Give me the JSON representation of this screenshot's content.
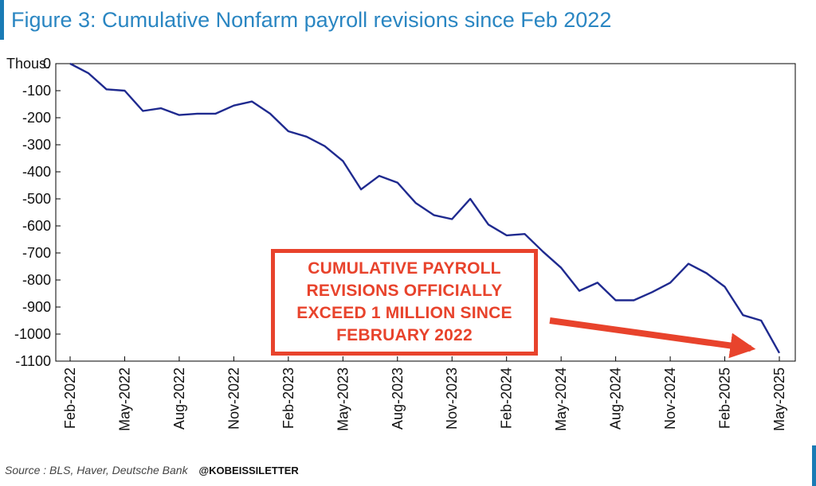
{
  "title": "Figure 3: Cumulative Nonfarm payroll revisions since Feb 2022",
  "footer": {
    "source": "Source : BLS, Haver, Deutsche Bank",
    "handle": "@KOBEISSILETTER"
  },
  "callout": {
    "text": "CUMULATIVE PAYROLL REVISIONS OFFICIALLY EXCEED 1 MILLION SINCE FEBRUARY 2022"
  },
  "colors": {
    "title": "#2a86c2",
    "line": "#1f2a8f",
    "callout": "#e8432c",
    "accent_rule": "#1a7bb5"
  },
  "chart_data": {
    "type": "line",
    "title": "Figure 3: Cumulative Nonfarm payroll revisions since Feb 2022",
    "ylabel": "Thous.",
    "ylim": [
      -1100,
      0
    ],
    "yticks": [
      0,
      -100,
      -200,
      -300,
      -400,
      -500,
      -600,
      -700,
      -800,
      -900,
      -1000,
      -1100
    ],
    "ytick_labels": [
      "0",
      "-100",
      "-200",
      "-300",
      "-400",
      "-500",
      "-600",
      "-700",
      "-800",
      "-900",
      "-1000",
      "-1100"
    ],
    "xtick_labels": [
      "Feb-2022",
      "May-2022",
      "Aug-2022",
      "Nov-2022",
      "Feb-2023",
      "May-2023",
      "Aug-2023",
      "Nov-2023",
      "Feb-2024",
      "May-2024",
      "Aug-2024",
      "Nov-2024",
      "Feb-2025",
      "May-2025"
    ],
    "grid": false,
    "series": [
      {
        "x": [
          "2022-02",
          "2022-03",
          "2022-04",
          "2022-05",
          "2022-06",
          "2022-07",
          "2022-08",
          "2022-09",
          "2022-10",
          "2022-11",
          "2022-12",
          "2023-01",
          "2023-02",
          "2023-03",
          "2023-04",
          "2023-05",
          "2023-06",
          "2023-07",
          "2023-08",
          "2023-09",
          "2023-10",
          "2023-11",
          "2023-12",
          "2024-01",
          "2024-02",
          "2024-03",
          "2024-04",
          "2024-05",
          "2024-06",
          "2024-07",
          "2024-08",
          "2024-09",
          "2024-10",
          "2024-11",
          "2024-12",
          "2025-01",
          "2025-02",
          "2025-03",
          "2025-04",
          "2025-05"
        ],
        "values": [
          0,
          -35,
          -95,
          -100,
          -175,
          -165,
          -190,
          -185,
          -185,
          -155,
          -140,
          -185,
          -250,
          -270,
          -305,
          -360,
          -465,
          -415,
          -440,
          -515,
          -560,
          -575,
          -500,
          -595,
          -635,
          -630,
          -695,
          -755,
          -840,
          -810,
          -875,
          -875,
          -845,
          -810,
          -740,
          -775,
          -825,
          -930,
          -950,
          -1070
        ]
      }
    ]
  }
}
